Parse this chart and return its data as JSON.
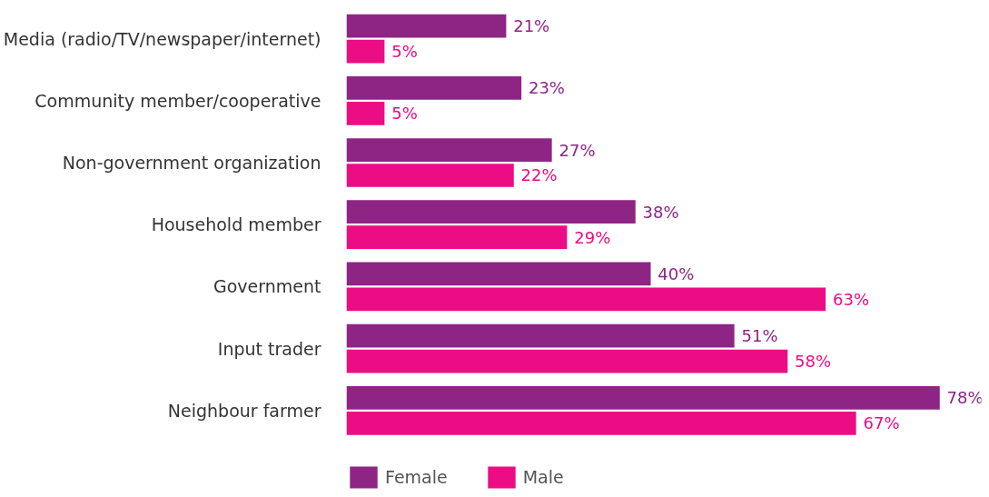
{
  "chart_data": {
    "type": "bar",
    "orientation": "horizontal",
    "categories": [
      "Media (radio/TV/newspaper/internet)",
      "Community member/cooperative",
      "Non-government organization",
      "Household member",
      "Government",
      "Input trader",
      "Neighbour farmer"
    ],
    "series": [
      {
        "name": "Female",
        "color": "#8e2585",
        "values": [
          21,
          23,
          27,
          38,
          40,
          51,
          78
        ],
        "value_labels": [
          "21%",
          "23%",
          "27%",
          "38%",
          "40%",
          "51%",
          "78%"
        ]
      },
      {
        "name": "Male",
        "color": "#ec0c84",
        "values": [
          5,
          5,
          22,
          29,
          63,
          58,
          67
        ],
        "value_labels": [
          "5%",
          "5%",
          "22%",
          "29%",
          "63%",
          "58%",
          "67%"
        ]
      }
    ],
    "legend": "bottom",
    "grid": false
  }
}
